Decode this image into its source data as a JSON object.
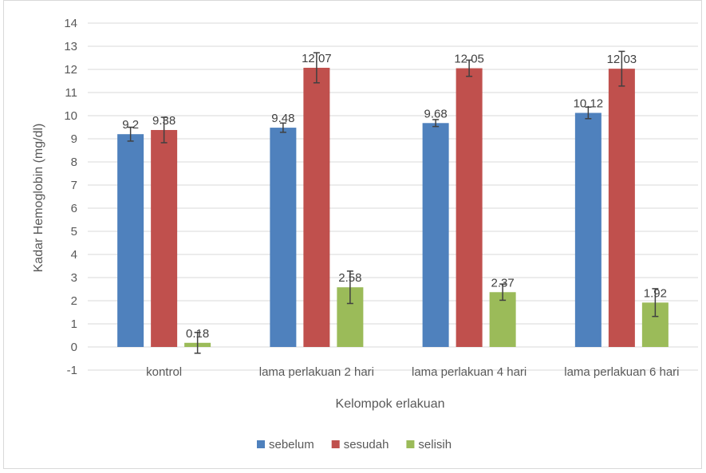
{
  "chart_data": {
    "type": "bar",
    "title": "",
    "xlabel": "Kelompok erlakuan",
    "ylabel": "Kadar Hemoglobin (mg/dl)",
    "ylim": [
      -1,
      14
    ],
    "yticks": [
      -1,
      0,
      1,
      2,
      3,
      4,
      5,
      6,
      7,
      8,
      9,
      10,
      11,
      12,
      13,
      14
    ],
    "grid": true,
    "legend_position": "bottom",
    "categories": [
      "kontrol",
      "lama perlakuan 2 hari",
      "lama perlakuan 4 hari",
      "lama perlakuan 6 hari"
    ],
    "series": [
      {
        "name": "sebelum",
        "color": "#4f81bd",
        "values": [
          9.2,
          9.48,
          9.68,
          10.12
        ],
        "labels": [
          "9.2",
          "9.48",
          "9.68",
          "10.12"
        ],
        "error": [
          0.3,
          0.2,
          0.15,
          0.25
        ]
      },
      {
        "name": "sesudah",
        "color": "#c0504d",
        "values": [
          9.38,
          12.07,
          12.05,
          12.03
        ],
        "labels": [
          "9.38",
          "12.07",
          "12.05",
          "12.03"
        ],
        "error": [
          0.55,
          0.65,
          0.35,
          0.75
        ]
      },
      {
        "name": "selisih",
        "color": "#9bbb59",
        "values": [
          0.18,
          2.58,
          2.37,
          1.92
        ],
        "labels": [
          "0.18",
          "2.58",
          "2.37",
          "1.92"
        ],
        "error": [
          0.45,
          0.7,
          0.35,
          0.6
        ]
      }
    ]
  }
}
